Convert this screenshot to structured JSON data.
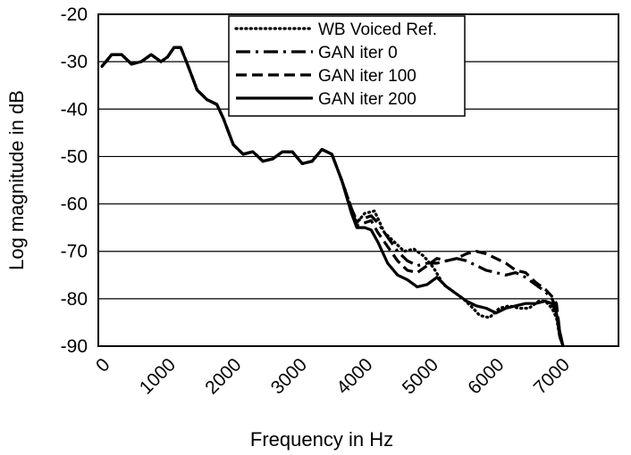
{
  "chart_data": {
    "type": "line",
    "xlabel": "Frequency in Hz",
    "ylabel": "Log magnitude in dB",
    "xlim": [
      0,
      7000
    ],
    "ylim": [
      -90,
      -20
    ],
    "xticks": [
      0,
      1000,
      2000,
      3000,
      4000,
      5000,
      6000,
      7000
    ],
    "yticks": [
      -20,
      -30,
      -40,
      -50,
      -60,
      -70,
      -80,
      -90
    ],
    "grid": "horizontal",
    "legend_position": "top-center",
    "series": [
      {
        "name": "WB Voiced Ref.",
        "style": "dotted",
        "x": [
          0,
          150,
          300,
          450,
          600,
          750,
          900,
          1000,
          1100,
          1200,
          1300,
          1450,
          1600,
          1750,
          1850,
          2000,
          2150,
          2300,
          2450,
          2600,
          2750,
          2900,
          3050,
          3200,
          3350,
          3500,
          3650,
          3800,
          3880,
          4000,
          4150,
          4300,
          4450,
          4600,
          4750,
          4900,
          5050,
          5200,
          5350,
          5500,
          5650,
          5750,
          5900,
          6050,
          6200,
          6350,
          6500,
          6650,
          6750,
          6850,
          6920,
          6970,
          7020
        ],
        "values": [
          -31,
          -28.5,
          -28.5,
          -30.5,
          -30,
          -28.5,
          -30,
          -29,
          -27,
          -27,
          -30.5,
          -36,
          -38,
          -39,
          -42,
          -47.5,
          -49.5,
          -49,
          -51,
          -50.5,
          -49,
          -49,
          -51.5,
          -51,
          -48.5,
          -49.5,
          -55,
          -61,
          -64,
          -62,
          -61.5,
          -66,
          -68,
          -70,
          -69.5,
          -71,
          -73.5,
          -77,
          -78.5,
          -80,
          -82,
          -83.5,
          -84,
          -82,
          -81.5,
          -82,
          -82,
          -80.5,
          -80.5,
          -82,
          -84,
          -88,
          -90
        ]
      },
      {
        "name": "GAN iter 0",
        "style": "dash-dot",
        "x": [
          0,
          150,
          300,
          450,
          600,
          750,
          900,
          1000,
          1100,
          1200,
          1300,
          1450,
          1600,
          1750,
          1850,
          2000,
          2150,
          2300,
          2450,
          2600,
          2750,
          2900,
          3050,
          3200,
          3350,
          3500,
          3650,
          3800,
          3880,
          4000,
          4100,
          4200,
          4350,
          4500,
          4650,
          4800,
          4950,
          5100,
          5250,
          5400,
          5550,
          5700,
          5850,
          6000,
          6150,
          6300,
          6450,
          6600,
          6750,
          6850,
          6920,
          6970,
          7020
        ],
        "values": [
          -31,
          -28.5,
          -28.5,
          -30.5,
          -30,
          -28.5,
          -30,
          -29,
          -27,
          -27,
          -30.5,
          -36,
          -38,
          -39,
          -42,
          -47.5,
          -49.5,
          -49,
          -51,
          -50.5,
          -49,
          -49,
          -51.5,
          -51,
          -48.5,
          -49.5,
          -55,
          -61,
          -63.5,
          -63,
          -62.5,
          -64,
          -67,
          -70,
          -72,
          -73,
          -72.5,
          -72.5,
          -72,
          -71.5,
          -72,
          -73,
          -74,
          -74.5,
          -75,
          -74.5,
          -75.5,
          -77,
          -78.5,
          -80,
          -82,
          -87,
          -90
        ]
      },
      {
        "name": "GAN iter 100",
        "style": "dashed",
        "x": [
          0,
          150,
          300,
          450,
          600,
          750,
          900,
          1000,
          1100,
          1200,
          1300,
          1450,
          1600,
          1750,
          1850,
          2000,
          2150,
          2300,
          2450,
          2600,
          2750,
          2900,
          3050,
          3200,
          3350,
          3500,
          3650,
          3800,
          3880,
          4000,
          4100,
          4200,
          4350,
          4500,
          4650,
          4800,
          4950,
          5100,
          5250,
          5400,
          5550,
          5700,
          5850,
          6000,
          6150,
          6300,
          6450,
          6600,
          6750,
          6850,
          6920,
          6970,
          7020
        ],
        "values": [
          -31,
          -28.5,
          -28.5,
          -30.5,
          -30,
          -28.5,
          -30,
          -29,
          -27,
          -27,
          -30.5,
          -36,
          -38,
          -39,
          -42,
          -47.5,
          -49.5,
          -49,
          -51,
          -50.5,
          -49,
          -49,
          -51.5,
          -51,
          -48.5,
          -49.5,
          -55,
          -61,
          -64.5,
          -64,
          -63.5,
          -66,
          -69,
          -72,
          -74,
          -74.5,
          -73,
          -71.5,
          -72,
          -71.5,
          -70.5,
          -70,
          -70.5,
          -71.5,
          -72.5,
          -74,
          -74.5,
          -76.5,
          -78,
          -79.5,
          -81,
          -87,
          -90
        ]
      },
      {
        "name": "GAN iter 200",
        "style": "solid",
        "x": [
          0,
          150,
          300,
          450,
          600,
          750,
          900,
          1000,
          1100,
          1200,
          1300,
          1450,
          1600,
          1750,
          1850,
          2000,
          2150,
          2300,
          2450,
          2600,
          2750,
          2900,
          3050,
          3200,
          3350,
          3500,
          3650,
          3800,
          3880,
          4000,
          4100,
          4200,
          4350,
          4500,
          4650,
          4800,
          4950,
          5100,
          5250,
          5400,
          5550,
          5700,
          5850,
          6000,
          6150,
          6300,
          6450,
          6600,
          6750,
          6850,
          6920,
          6970,
          7020
        ],
        "values": [
          -31,
          -28.5,
          -28.5,
          -30.5,
          -30,
          -28.5,
          -30,
          -29,
          -27,
          -27,
          -30.5,
          -36,
          -38,
          -39,
          -42,
          -47.5,
          -49.5,
          -49,
          -51,
          -50.5,
          -49,
          -49,
          -51.5,
          -51,
          -48.5,
          -49.5,
          -55,
          -62,
          -65,
          -65,
          -65.5,
          -68,
          -72.5,
          -75,
          -76,
          -77.5,
          -77,
          -75.5,
          -77.5,
          -79,
          -80.5,
          -81.5,
          -82,
          -83,
          -82,
          -81.5,
          -81,
          -81,
          -80.5,
          -81,
          -83,
          -88,
          -90
        ]
      }
    ]
  }
}
